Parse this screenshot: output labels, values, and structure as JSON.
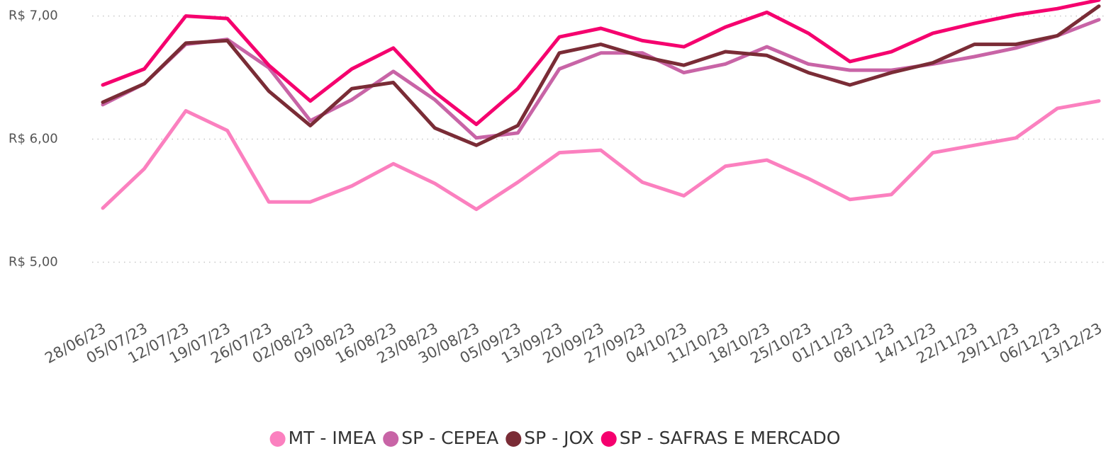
{
  "chart_data": {
    "type": "line",
    "categories": [
      "28/06/23",
      "05/07/23",
      "12/07/23",
      "19/07/23",
      "26/07/23",
      "02/08/23",
      "09/08/23",
      "16/08/23",
      "23/08/23",
      "30/08/23",
      "05/09/23",
      "13/09/23",
      "20/09/23",
      "27/09/23",
      "04/10/23",
      "11/10/23",
      "18/10/23",
      "25/10/23",
      "01/11/23",
      "08/11/23",
      "14/11/23",
      "22/11/23",
      "29/11/23",
      "06/12/23",
      "13/12/23"
    ],
    "series": [
      {
        "name": "MT - IMEA",
        "color": "#fb80bf",
        "values": [
          5.44,
          5.76,
          6.23,
          6.07,
          5.49,
          5.49,
          5.62,
          5.8,
          5.64,
          5.43,
          5.65,
          5.89,
          5.91,
          5.65,
          5.54,
          5.78,
          5.83,
          5.68,
          5.51,
          5.55,
          5.89,
          5.95,
          6.01,
          6.25,
          6.31
        ]
      },
      {
        "name": "SP - CEPEA",
        "color": "#c864a6",
        "values": [
          6.28,
          6.45,
          6.77,
          6.81,
          6.58,
          6.15,
          6.32,
          6.55,
          6.32,
          6.01,
          6.05,
          6.57,
          6.7,
          6.7,
          6.54,
          6.61,
          6.75,
          6.61,
          6.56,
          6.56,
          6.61,
          6.67,
          6.74,
          6.84,
          6.97
        ]
      },
      {
        "name": "SP - JOX",
        "color": "#7a2c36",
        "values": [
          6.3,
          6.45,
          6.78,
          6.8,
          6.39,
          6.11,
          6.41,
          6.46,
          6.09,
          5.95,
          6.11,
          6.7,
          6.77,
          6.67,
          6.6,
          6.71,
          6.68,
          6.54,
          6.44,
          6.54,
          6.62,
          6.77,
          6.77,
          6.84,
          7.08
        ]
      },
      {
        "name": "SP - SAFRAS E MERCADO",
        "color": "#f5006e",
        "values": [
          6.44,
          6.57,
          7.0,
          6.98,
          6.6,
          6.31,
          6.57,
          6.74,
          6.38,
          6.12,
          6.41,
          6.83,
          6.9,
          6.8,
          6.75,
          6.91,
          7.03,
          6.86,
          6.63,
          6.71,
          6.86,
          6.94,
          7.01,
          7.06,
          7.13
        ]
      }
    ],
    "ylim": [
      4.6,
      7.13
    ],
    "yticks": [
      {
        "value": 5,
        "label": "R$ 5,00"
      },
      {
        "value": 6,
        "label": "R$ 6,00"
      },
      {
        "value": 7,
        "label": "R$ 7,00"
      }
    ],
    "grid": true,
    "legend": "bottom"
  }
}
